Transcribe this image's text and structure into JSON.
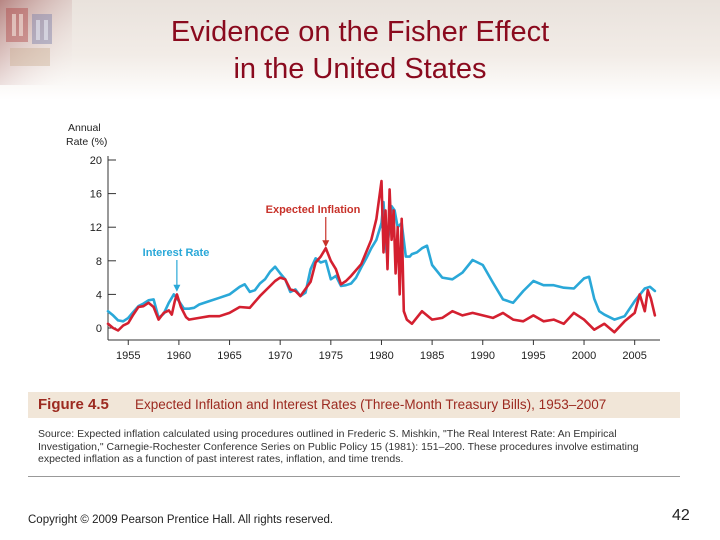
{
  "slide": {
    "title_line1": "Evidence on the Fisher Effect",
    "title_line2": "in the United States",
    "copyright": "Copyright © 2009 Pearson Prentice Hall. All rights reserved.",
    "page_number": "42"
  },
  "figure": {
    "number": "Figure 4.5",
    "caption": "Expected Inflation and Interest Rates (Three-Month Treasury Bills), 1953–2007",
    "source_line1": "Source: Expected inflation calculated using procedures outlined in Frederic S. Mishkin, \"The Real Interest Rate: An Empirical",
    "source_line2": "Investigation,\" Carnegie-Rochester Conference Series on Public Policy 15 (1981): 151–200. These procedures involve estimating",
    "source_line3": "expected inflation as a function of past interest rates, inflation, and time trends."
  },
  "colors": {
    "title": "#8a0a1e",
    "interest_rate": "#2aa8d8",
    "expected_inflation": "#d42030",
    "label_text": "#c8322a",
    "axis": "#333333"
  },
  "chart_data": {
    "type": "line",
    "ylabel_line1": "Annual",
    "ylabel_line2": "Rate (%)",
    "xlim": [
      1953,
      2007.5
    ],
    "ylim": [
      -0.5,
      20
    ],
    "xticks": [
      1955,
      1960,
      1965,
      1970,
      1975,
      1980,
      1985,
      1990,
      1995,
      2000,
      2005
    ],
    "yticks": [
      0,
      4,
      8,
      12,
      16,
      20
    ],
    "grid": false,
    "annotations": [
      {
        "text": "Expected Inflation",
        "series": "Expected Inflation",
        "points_to": [
          1974.5,
          9.5
        ]
      },
      {
        "text": "Interest Rate",
        "series": "Interest Rate",
        "points_to": [
          1959.8,
          4.2
        ]
      }
    ],
    "series": [
      {
        "name": "Interest Rate",
        "x": [
          1953,
          1953.5,
          1954,
          1954.5,
          1955,
          1955.5,
          1956,
          1956.5,
          1957,
          1957.5,
          1958,
          1958.5,
          1959,
          1959.5,
          1960,
          1960.5,
          1961,
          1961.5,
          1962,
          1963,
          1964,
          1965,
          1966,
          1966.5,
          1967,
          1967.5,
          1968,
          1968.5,
          1969,
          1969.5,
          1970,
          1970.5,
          1971,
          1971.5,
          1972,
          1972.5,
          1973,
          1973.5,
          1974,
          1974.5,
          1975,
          1975.5,
          1976,
          1976.5,
          1977,
          1977.5,
          1978,
          1978.5,
          1979,
          1979.5,
          1980,
          1980.2,
          1980.5,
          1980.8,
          1981,
          1981.3,
          1981.6,
          1982,
          1982.4,
          1982.8,
          1983,
          1983.5,
          1984,
          1984.5,
          1985,
          1986,
          1987,
          1988,
          1989,
          1989.5,
          1990,
          1991,
          1992,
          1993,
          1994,
          1995,
          1996,
          1997,
          1998,
          1999,
          2000,
          2000.5,
          2001,
          2001.5,
          2002,
          2003,
          2004,
          2005,
          2006,
          2006.5,
          2007
        ],
        "values": [
          2.0,
          1.5,
          0.9,
          0.8,
          1.2,
          1.9,
          2.6,
          2.9,
          3.3,
          3.4,
          1.2,
          1.7,
          3.0,
          4.0,
          3.2,
          2.3,
          2.3,
          2.4,
          2.8,
          3.2,
          3.6,
          4.0,
          4.9,
          5.2,
          4.3,
          4.5,
          5.3,
          5.8,
          6.7,
          7.3,
          6.5,
          5.8,
          4.3,
          4.6,
          3.8,
          4.2,
          7.0,
          8.3,
          7.8,
          8.0,
          5.8,
          6.2,
          5.0,
          5.1,
          5.3,
          6.0,
          7.2,
          8.3,
          9.5,
          10.5,
          12.5,
          15.0,
          9.0,
          12.0,
          14.5,
          14.0,
          12.0,
          12.5,
          8.5,
          8.5,
          8.8,
          9.0,
          9.5,
          9.8,
          7.5,
          6.0,
          5.8,
          6.6,
          8.1,
          7.8,
          7.5,
          5.4,
          3.4,
          3.0,
          4.4,
          5.6,
          5.1,
          5.1,
          4.8,
          4.7,
          5.9,
          6.1,
          3.5,
          2.0,
          1.6,
          1.0,
          1.4,
          3.2,
          4.7,
          4.9,
          4.4
        ]
      },
      {
        "name": "Expected Inflation",
        "x": [
          1953,
          1953.5,
          1954,
          1954.5,
          1955,
          1955.5,
          1956,
          1956.5,
          1957,
          1957.5,
          1958,
          1958.5,
          1959,
          1959.3,
          1959.6,
          1959.8,
          1960.2,
          1960.7,
          1961,
          1962,
          1963,
          1964,
          1965,
          1966,
          1967,
          1968,
          1969,
          1969.5,
          1970,
          1970.5,
          1971,
          1971.5,
          1972,
          1973,
          1973.5,
          1974,
          1974.5,
          1975,
          1975.5,
          1976,
          1976.5,
          1977,
          1978,
          1979,
          1979.5,
          1980,
          1980.2,
          1980.4,
          1980.6,
          1980.8,
          1981,
          1981.2,
          1981.4,
          1981.6,
          1981.8,
          1982,
          1982.2,
          1982.5,
          1983,
          1984,
          1985,
          1986,
          1987,
          1988,
          1989,
          1990,
          1991,
          1992,
          1993,
          1994,
          1995,
          1996,
          1997,
          1998,
          1999,
          2000,
          2001,
          2002,
          2003,
          2004,
          2005,
          2005.5,
          2006,
          2006.3,
          2006.6,
          2007
        ],
        "values": [
          0.5,
          0.0,
          -0.3,
          0.3,
          0.6,
          1.6,
          2.5,
          2.6,
          3.0,
          2.5,
          1.0,
          1.8,
          2.1,
          1.6,
          3.2,
          4.0,
          2.5,
          1.3,
          1.0,
          1.2,
          1.4,
          1.4,
          1.8,
          2.5,
          2.4,
          3.8,
          5.0,
          5.6,
          6.0,
          5.8,
          4.6,
          4.4,
          3.8,
          5.5,
          7.8,
          8.5,
          9.5,
          8.0,
          7.0,
          5.2,
          5.6,
          6.2,
          7.6,
          10.5,
          13.0,
          17.5,
          9.0,
          14.0,
          7.0,
          16.5,
          10.5,
          14.0,
          6.5,
          12.0,
          4.0,
          13.0,
          2.0,
          1.0,
          0.5,
          2.0,
          1.0,
          1.2,
          2.0,
          1.5,
          1.8,
          1.5,
          1.2,
          1.8,
          1.0,
          0.8,
          1.5,
          0.8,
          1.0,
          0.5,
          1.8,
          1.0,
          -0.2,
          0.5,
          -0.5,
          0.8,
          1.8,
          4.0,
          2.0,
          4.5,
          3.5,
          1.5
        ]
      }
    ]
  }
}
